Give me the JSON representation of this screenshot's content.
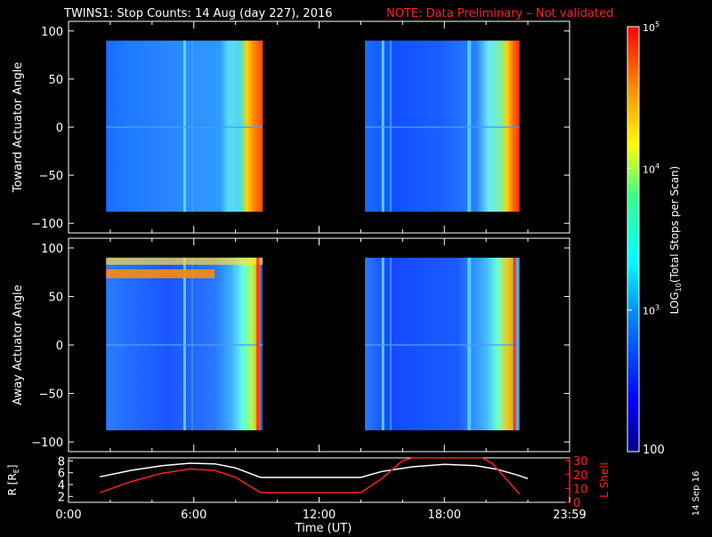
{
  "header": {
    "title": "TWINS1: Stop Counts: 14 Aug (day 227), 2016",
    "note": "NOTE: Data Preliminary – Not validated",
    "note_color": "#ff2020"
  },
  "side_label": "14 Sep 16",
  "colorbar": {
    "label": "LOG10(Total Stops per Scan)",
    "label_main": "LOG",
    "label_sub": "10",
    "label_rest": "(Total Stops per Scan)",
    "tick_base": [
      "10",
      "10",
      "10"
    ],
    "tick_exp": [
      "5",
      "4",
      "3"
    ],
    "tick_bottom": "100",
    "range": [
      100,
      100000
    ],
    "scale": "log",
    "colormap": "rainbow (dark blue → cyan → yellow → red)"
  },
  "chart_data": [
    {
      "type": "heatmap",
      "name": "toward-panel",
      "ylabel": "Toward Actuator Angle",
      "ylim": [
        -110,
        110
      ],
      "yticks": [
        "100",
        "50",
        "0",
        "−50",
        "−100"
      ],
      "xlim": [
        0,
        24
      ],
      "data_blocks_hours": [
        [
          1.8,
          9.3
        ],
        [
          14.2,
          21.6
        ]
      ],
      "angle_range": [
        -88,
        90
      ],
      "notes": "Mostly blue/cyan counts; bright orange-red band near end of each block."
    },
    {
      "type": "heatmap",
      "name": "away-panel",
      "ylabel": "Away Actuator Angle",
      "ylim": [
        -110,
        110
      ],
      "yticks": [
        "100",
        "50",
        "0",
        "−50",
        "−100"
      ],
      "xlim": [
        0,
        24
      ],
      "data_blocks_hours": [
        [
          1.8,
          9.3
        ],
        [
          14.2,
          21.6
        ]
      ],
      "angle_range": [
        -88,
        90
      ],
      "notes": "Orange-red band near +75 deg in first block; red streaks near end of blocks."
    },
    {
      "type": "line",
      "name": "orbit-panel",
      "ylabel_left": "R [RE]",
      "ylabel_left_main": "R [R",
      "ylabel_left_sub": "E",
      "ylabel_left_end": "]",
      "ylabel_right": "L Shell",
      "yticks_left": [
        "8",
        "6",
        "4",
        "2"
      ],
      "yticks_right": [
        "30",
        "20",
        "10",
        "0"
      ],
      "ylim_left": [
        1,
        8.5
      ],
      "ylim_right": [
        0,
        32
      ],
      "series": [
        {
          "name": "R",
          "color": "#ffffff",
          "x": [
            1.5,
            3,
            4.5,
            5.8,
            7,
            8,
            9.2,
            14,
            15,
            16.5,
            18,
            19.5,
            20.5,
            21.5,
            22
          ],
          "y": [
            5.3,
            6.4,
            7.2,
            7.6,
            7.5,
            6.8,
            5.2,
            5.2,
            6.2,
            7.0,
            7.4,
            7.2,
            6.6,
            5.6,
            5.0
          ]
        },
        {
          "name": "L Shell",
          "color": "#ff2020",
          "x": [
            1.5,
            3,
            4.5,
            5.8,
            7,
            8,
            9.2,
            14,
            15,
            16,
            16.5,
            19.8,
            20.3,
            21.6
          ],
          "y": [
            7,
            15,
            21,
            24,
            23,
            18,
            7,
            7,
            17,
            30,
            34,
            34,
            28,
            6
          ]
        }
      ]
    }
  ],
  "xaxis": {
    "label": "Time (UT)",
    "ticks": [
      "0:00",
      "6:00",
      "12:00",
      "18:00",
      "23:59"
    ],
    "tick_hours": [
      0,
      6,
      12,
      18,
      24
    ]
  }
}
